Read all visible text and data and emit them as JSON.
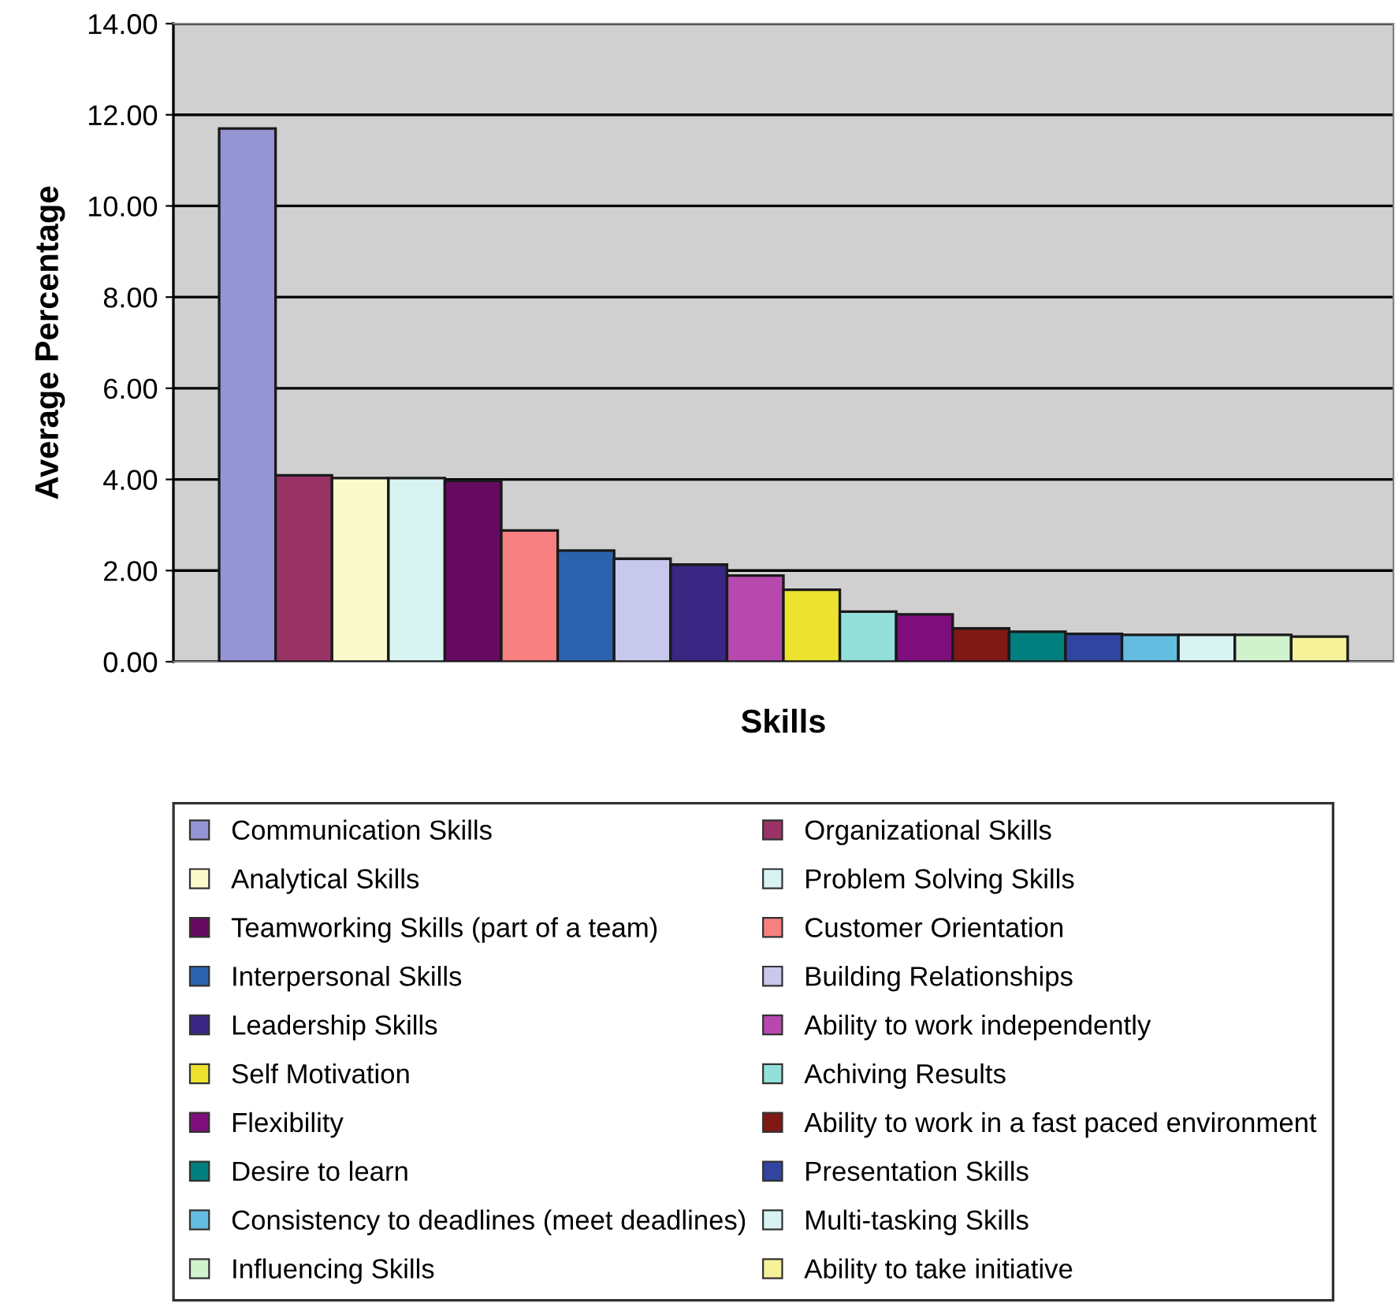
{
  "chart_data": {
    "type": "bar",
    "xlabel": "Skills",
    "ylabel": "Average Percentage",
    "categories": [
      null
    ],
    "ylim": [
      0,
      14
    ],
    "yticks": [
      {
        "value": 0,
        "label": "0.00"
      },
      {
        "value": 2,
        "label": "2.00"
      },
      {
        "value": 4,
        "label": "4.00"
      },
      {
        "value": 6,
        "label": "6.00"
      },
      {
        "value": 8,
        "label": "8.00"
      },
      {
        "value": 10,
        "label": "10.00"
      },
      {
        "value": 12,
        "label": "12.00"
      },
      {
        "value": 14,
        "label": "14.00"
      }
    ],
    "grid": "y",
    "legend": "bottom",
    "series": [
      {
        "name": "Communication Skills",
        "color": "#9595d5",
        "values": [
          11.7
        ]
      },
      {
        "name": "Organizational Skills",
        "color": "#993366",
        "values": [
          4.09
        ]
      },
      {
        "name": "Analytical Skills",
        "color": "#fafacc",
        "values": [
          4.03
        ]
      },
      {
        "name": "Problem Solving Skills",
        "color": "#d9f3f3",
        "values": [
          4.03
        ]
      },
      {
        "name": "Teamworking Skills (part of a team)",
        "color": "#660a62",
        "values": [
          3.97
        ]
      },
      {
        "name": "Customer Orientation",
        "color": "#f98080",
        "values": [
          2.88
        ]
      },
      {
        "name": "Interpersonal Skills",
        "color": "#2a62ad",
        "values": [
          2.44
        ]
      },
      {
        "name": "Building Relationships",
        "color": "#c8c8ec",
        "values": [
          2.26
        ]
      },
      {
        "name": "Leadership Skills",
        "color": "#3a2683",
        "values": [
          2.13
        ]
      },
      {
        "name": "Ability to work independently",
        "color": "#b748ae",
        "values": [
          1.89
        ]
      },
      {
        "name": "Self Motivation",
        "color": "#ede22f",
        "values": [
          1.58
        ]
      },
      {
        "name": "Achiving Results",
        "color": "#93dfd9",
        "values": [
          1.1
        ]
      },
      {
        "name": "Flexibility",
        "color": "#7e0e7b",
        "values": [
          1.04
        ]
      },
      {
        "name": "Ability to work in a fast paced environment",
        "color": "#801914",
        "values": [
          0.73
        ]
      },
      {
        "name": "Desire to learn",
        "color": "#007f7e",
        "values": [
          0.66
        ]
      },
      {
        "name": "Presentation Skills",
        "color": "#3044a0",
        "values": [
          0.61
        ]
      },
      {
        "name": "Consistency to deadlines (meet deadlines)",
        "color": "#64bde0",
        "values": [
          0.59
        ]
      },
      {
        "name": "Multi-tasking Skills",
        "color": "#d9f3f3",
        "values": [
          0.59
        ]
      },
      {
        "name": "Influencing Skills",
        "color": "#d0f2cc",
        "values": [
          0.59
        ]
      },
      {
        "name": "Ability to take initiative",
        "color": "#f6f29a",
        "values": [
          0.55
        ]
      }
    ]
  }
}
